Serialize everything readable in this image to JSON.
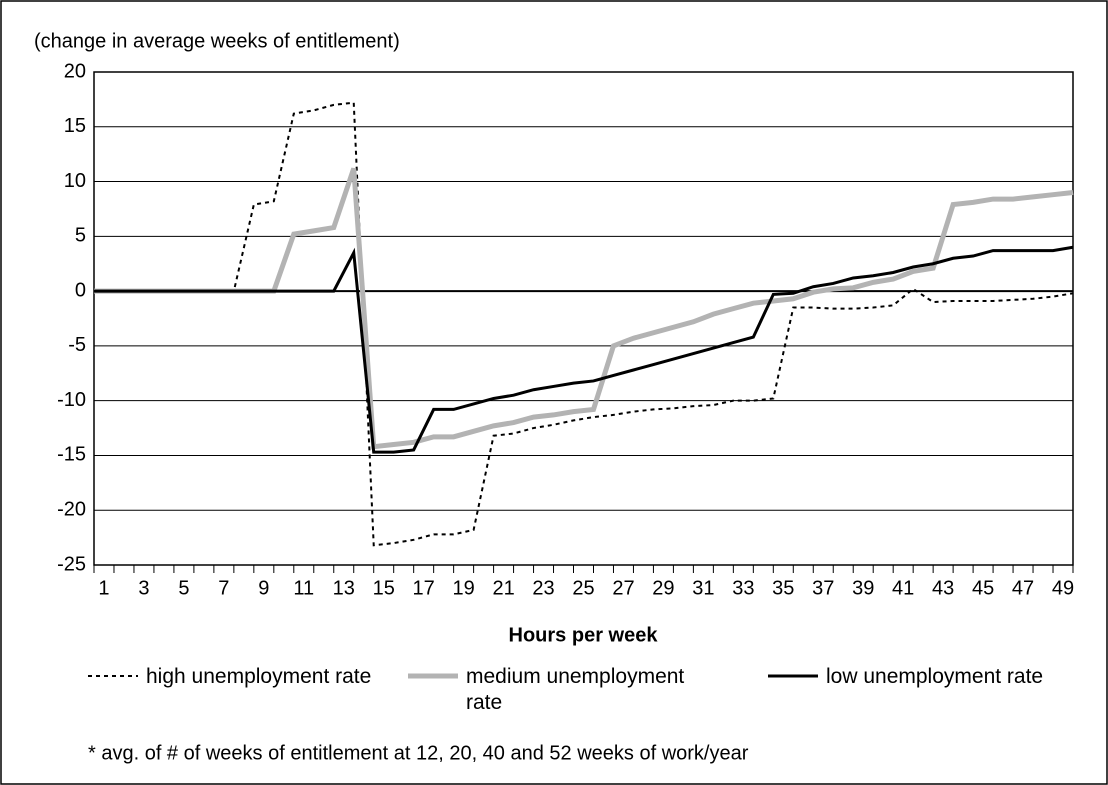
{
  "chart_data": {
    "type": "line",
    "y_label": "(change in average weeks of entitlement)",
    "x_label": "Hours per week",
    "note": "* avg. of # of weeks of entitlement at 12, 20, 40 and 52 weeks of work/year",
    "categories": [
      1,
      null,
      3,
      null,
      5,
      null,
      7,
      null,
      9,
      null,
      11,
      null,
      13,
      null,
      15,
      null,
      17,
      null,
      19,
      null,
      21,
      null,
      23,
      null,
      25,
      null,
      27,
      null,
      29,
      null,
      31,
      null,
      33,
      null,
      35,
      null,
      37,
      null,
      39,
      null,
      41,
      null,
      43,
      null,
      45,
      null,
      47,
      null,
      49,
      null
    ],
    "ylim": [
      -25,
      20
    ],
    "yticks": [
      -25,
      -20,
      -15,
      -10,
      -5,
      0,
      5,
      10,
      15,
      20
    ],
    "grid": true,
    "series": [
      {
        "name": "high unemployment rate",
        "color": "#000000",
        "style": "dotted",
        "width": 2,
        "values": [
          0,
          0,
          0,
          0,
          0,
          0,
          0,
          0,
          7.9,
          8.2,
          16.2,
          16.5,
          17,
          17.2,
          -23.2,
          -23,
          -22.7,
          -22.2,
          -22.2,
          -21.8,
          -13.2,
          -13,
          -12.5,
          -12.2,
          -11.8,
          -11.5,
          -11.3,
          -11,
          -10.8,
          -10.7,
          -10.5,
          -10.4,
          -10,
          -10,
          -9.8,
          -1.5,
          -1.5,
          -1.6,
          -1.6,
          -1.5,
          -1.3,
          0.2,
          -1,
          -0.9,
          -0.9,
          -0.9,
          -0.8,
          -0.7,
          -0.5,
          -0.2
        ]
      },
      {
        "name": "medium unemployment rate",
        "color": "#b3b3b3",
        "style": "solid",
        "width": 5,
        "values": [
          0,
          0,
          0,
          0,
          0,
          0,
          0,
          0,
          0,
          0,
          5.2,
          5.5,
          5.8,
          11.2,
          -14.2,
          -14,
          -13.8,
          -13.3,
          -13.3,
          -12.8,
          -12.3,
          -12,
          -11.5,
          -11.3,
          -11,
          -10.8,
          -5,
          -4.3,
          -3.8,
          -3.3,
          -2.8,
          -2.1,
          -1.6,
          -1.1,
          -0.9,
          -0.7,
          -0.1,
          0.2,
          0.3,
          0.8,
          1.1,
          1.8,
          2.1,
          7.9,
          8.1,
          8.4,
          8.4,
          8.6,
          8.8,
          9
        ]
      },
      {
        "name": "low unemployment rate",
        "color": "#000000",
        "style": "solid",
        "width": 3,
        "values": [
          0,
          0,
          0,
          0,
          0,
          0,
          0,
          0,
          0,
          0,
          0,
          0,
          0,
          3.5,
          -14.7,
          -14.7,
          -14.5,
          -10.8,
          -10.8,
          -10.3,
          -9.8,
          -9.5,
          -9,
          -8.7,
          -8.4,
          -8.2,
          -7.7,
          -7.2,
          -6.7,
          -6.2,
          -5.7,
          -5.2,
          -4.7,
          -4.2,
          -0.3,
          -0.2,
          0.4,
          0.7,
          1.2,
          1.4,
          1.7,
          2.2,
          2.5,
          3,
          3.2,
          3.7,
          3.7,
          3.7,
          3.7,
          4
        ]
      }
    ]
  }
}
